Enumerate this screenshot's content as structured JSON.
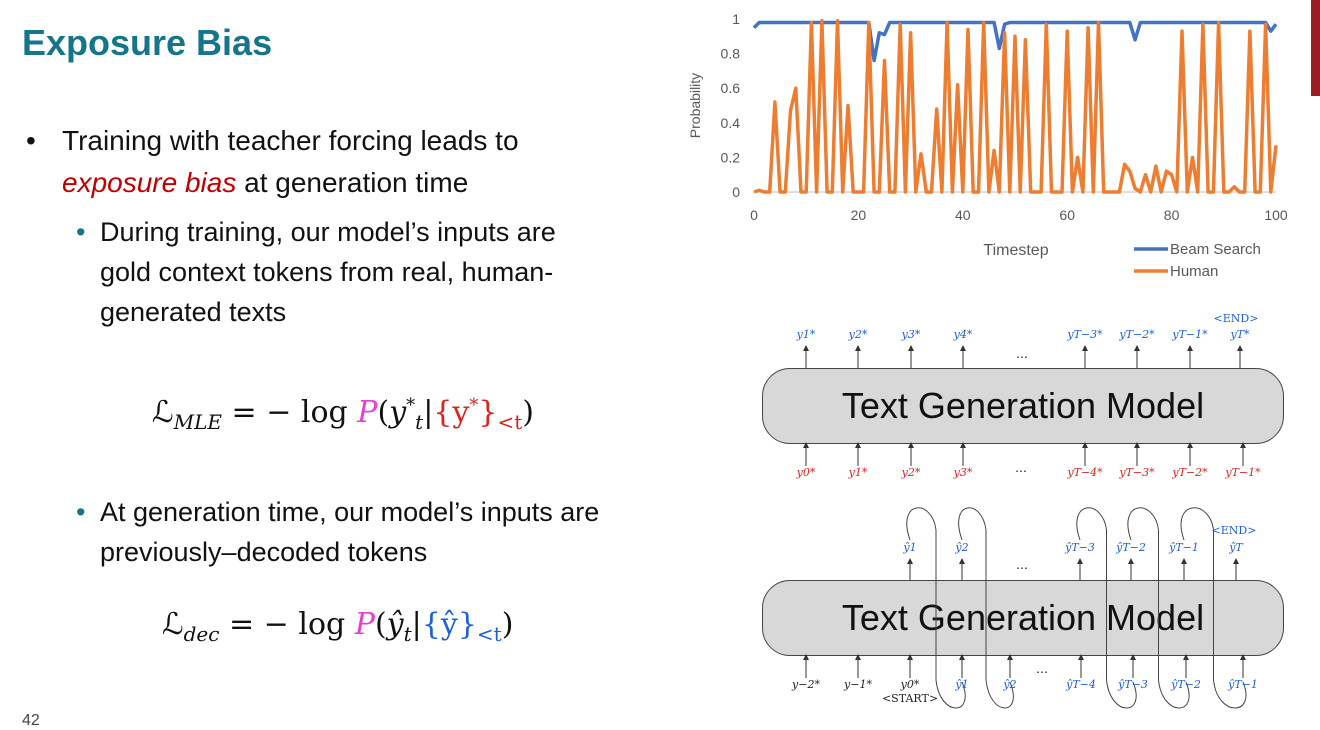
{
  "slide": {
    "title": "Exposure Bias",
    "number": "42",
    "bullet1_pre": "Training with teacher forcing leads to",
    "bullet1_em": "exposure bias",
    "bullet1_post": "at generation time",
    "sub1": "During training, our model’s inputs are gold context tokens from real, human-generated texts",
    "sub2": "At generation time, our model’s inputs are previously–decoded tokens",
    "colors": {
      "title": "#15758a",
      "emphasis": "#c00000",
      "model_p": "#e83fd0",
      "gold": "#d8231f",
      "decoded": "#1f5fd8"
    }
  },
  "equations": {
    "mle": {
      "L": "ℒ",
      "sub": "MLE",
      "eq": "= − log",
      "P": "P",
      "y": "y",
      "yst_sup": "*",
      "yst_sub": "t",
      "set": "{y",
      "set_sup": "*",
      "set_close": "}",
      "set_sub": "<t"
    },
    "dec": {
      "L": "ℒ",
      "sub": "dec",
      "eq": "= − log",
      "P": "P",
      "yhat": "ŷ",
      "yhat_sub": "t",
      "set": "{ŷ}",
      "set_sub": "<t"
    }
  },
  "chart_data": {
    "type": "line",
    "xlabel": "Timestep",
    "ylabel": "Probability",
    "xlim": [
      0,
      100
    ],
    "ylim": [
      0,
      1
    ],
    "xticks": [
      "0",
      "20",
      "40",
      "60",
      "80",
      "100"
    ],
    "yticks": [
      "0",
      "0.2",
      "0.4",
      "0.6",
      "0.8",
      "1"
    ],
    "grid": false,
    "legend_position": "bottom-right",
    "x": [
      0,
      1,
      2,
      3,
      4,
      5,
      6,
      7,
      8,
      9,
      10,
      11,
      12,
      13,
      14,
      15,
      16,
      17,
      18,
      19,
      20,
      21,
      22,
      23,
      24,
      25,
      26,
      27,
      28,
      29,
      30,
      31,
      32,
      33,
      34,
      35,
      36,
      37,
      38,
      39,
      40,
      41,
      42,
      43,
      44,
      45,
      46,
      47,
      48,
      49,
      50,
      51,
      52,
      53,
      54,
      55,
      56,
      57,
      58,
      59,
      60,
      61,
      62,
      63,
      64,
      65,
      66,
      67,
      68,
      69,
      70,
      71,
      72,
      73,
      74,
      75,
      76,
      77,
      78,
      79,
      80,
      81,
      82,
      83,
      84,
      85,
      86,
      87,
      88,
      89,
      90,
      91,
      92,
      93,
      94,
      95,
      96,
      97,
      98,
      99,
      100
    ],
    "series": [
      {
        "name": "Beam Search",
        "color": "#4472c4",
        "values": [
          0.95,
          0.98,
          0.98,
          0.98,
          0.98,
          0.98,
          0.98,
          0.98,
          0.98,
          0.98,
          0.98,
          0.98,
          0.98,
          0.98,
          0.98,
          0.98,
          0.98,
          0.98,
          0.98,
          0.98,
          0.98,
          0.98,
          0.98,
          0.76,
          0.92,
          0.91,
          0.98,
          0.98,
          0.98,
          0.98,
          0.98,
          0.98,
          0.98,
          0.98,
          0.98,
          0.98,
          0.98,
          0.98,
          0.98,
          0.98,
          0.98,
          0.98,
          0.98,
          0.98,
          0.98,
          0.98,
          0.98,
          0.83,
          0.97,
          0.98,
          0.98,
          0.98,
          0.98,
          0.98,
          0.98,
          0.98,
          0.98,
          0.98,
          0.98,
          0.98,
          0.98,
          0.98,
          0.98,
          0.98,
          0.98,
          0.98,
          0.98,
          0.98,
          0.98,
          0.98,
          0.98,
          0.98,
          0.98,
          0.88,
          0.98,
          0.98,
          0.98,
          0.98,
          0.98,
          0.98,
          0.98,
          0.98,
          0.98,
          0.98,
          0.98,
          0.98,
          0.98,
          0.98,
          0.98,
          0.98,
          0.98,
          0.98,
          0.98,
          0.98,
          0.98,
          0.98,
          0.98,
          0.98,
          0.98,
          0.93,
          0.97
        ]
      },
      {
        "name": "Human",
        "color": "#ed7d31",
        "values": [
          0.0,
          0.01,
          0.0,
          0.0,
          0.52,
          0.0,
          0.0,
          0.47,
          0.6,
          0.0,
          0.0,
          0.98,
          0.0,
          0.99,
          0.0,
          0.0,
          0.99,
          0.0,
          0.5,
          0.0,
          0.0,
          0.0,
          0.98,
          0.0,
          0.0,
          0.76,
          0.0,
          0.0,
          0.97,
          0.0,
          0.92,
          0.0,
          0.22,
          0.0,
          0.0,
          0.48,
          0.0,
          0.98,
          0.0,
          0.62,
          0.0,
          0.94,
          0.0,
          0.0,
          0.98,
          0.0,
          0.24,
          0.0,
          0.92,
          0.0,
          0.9,
          0.0,
          0.88,
          0.0,
          0.0,
          0.0,
          0.97,
          0.0,
          0.0,
          0.0,
          0.93,
          0.0,
          0.2,
          0.0,
          0.95,
          0.0,
          0.98,
          0.0,
          0.0,
          0.0,
          0.0,
          0.16,
          0.12,
          0.02,
          0.0,
          0.1,
          0.0,
          0.15,
          0.0,
          0.12,
          0.1,
          0.0,
          0.93,
          0.0,
          0.2,
          0.0,
          0.97,
          0.0,
          0.0,
          0.98,
          0.0,
          0.0,
          0.03,
          0.0,
          0.0,
          0.93,
          0.0,
          0.0,
          0.97,
          0.0,
          0.27
        ]
      }
    ]
  },
  "diagrams": {
    "model_label": "Text Generation Model",
    "top": {
      "outputs": [
        "y1*",
        "y2*",
        "y3*",
        "y4*",
        "yT−3*",
        "yT−2*",
        "yT−1*",
        "yT*"
      ],
      "end_token": "<END>",
      "ellipsis": "...",
      "inputs": [
        "y0*",
        "y1*",
        "y2*",
        "y3*",
        "yT−4*",
        "yT−3*",
        "yT−2*",
        "yT−1*"
      ]
    },
    "bottom": {
      "outputs": [
        "ŷ1",
        "ŷ2",
        "ŷT−3",
        "ŷT−2",
        "ŷT−1",
        "ŷT"
      ],
      "end_token": "<END>",
      "ellipsis": "...",
      "inputs": [
        "y−2*",
        "y−1*",
        "y0*",
        "ŷ1",
        "ŷ2",
        "ŷT−4",
        "ŷT−3",
        "ŷT−2",
        "ŷT−1"
      ],
      "start_token": "<START>"
    }
  }
}
